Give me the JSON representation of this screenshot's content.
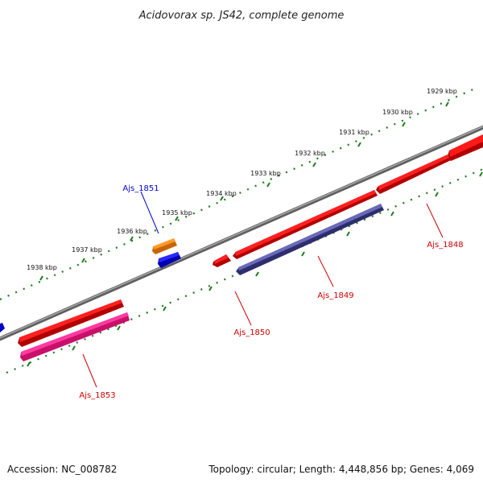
{
  "title": "Acidovorax sp. JS42, complete genome",
  "footer": {
    "accession": "Accession: NC_008782",
    "topology": "Topology: circular; Length: 4,448,856 bp; Genes: 4,069"
  },
  "kbp_ticks": [
    "1929 kbp",
    "1930 kbp",
    "1931 kbp",
    "1932 kbp",
    "1933 kbp",
    "1934 kbp",
    "1935 kbp",
    "1936 kbp",
    "1937 kbp",
    "1938 kbp"
  ],
  "genes": [
    {
      "name": "Ajs_1848",
      "color": "#ff0000",
      "strand": "+"
    },
    {
      "name": "Ajs_1849",
      "color": "#4b4b9a",
      "strand": "-"
    },
    {
      "name": "Ajs_1850",
      "color": "#ff0000",
      "strand": "+"
    },
    {
      "name": "Ajs_1851",
      "color": "#ff8c00",
      "strand": "+"
    },
    {
      "name": "Ajs_1853",
      "color": "#ff1493",
      "strand": "-"
    }
  ],
  "colors": {
    "backbone": "#808080",
    "tick_dots": "#1e7a1e",
    "label_red": "#cc0000",
    "label_blue": "#0000cc",
    "blue_feature": "#0000ff"
  }
}
